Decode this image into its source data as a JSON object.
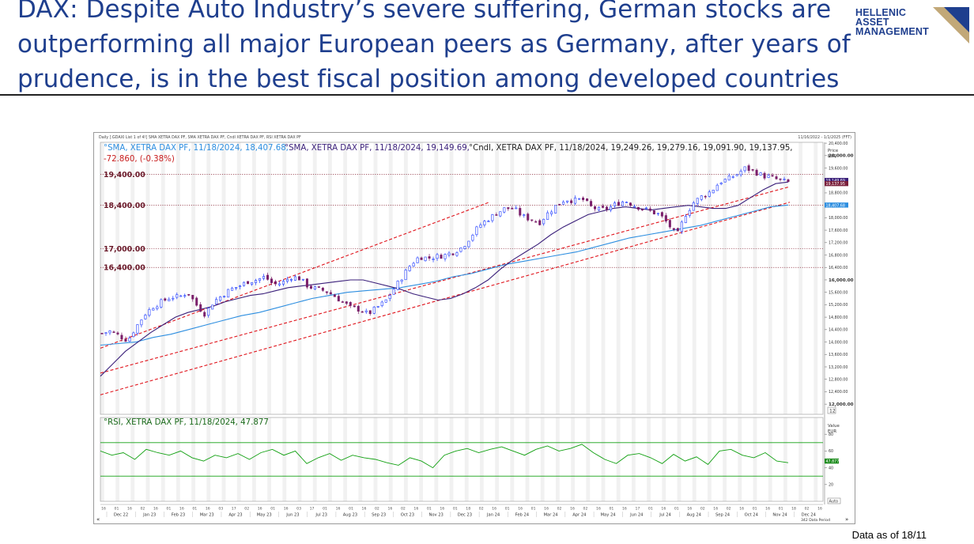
{
  "slide": {
    "title": "DAX: Despite Auto Industry’s severe suffering, German stocks are outperforming all major European peers as Germany, after years of prudence, is in the best fiscal position among developed countries",
    "footnote": "Data as of 18/11"
  },
  "logo": {
    "line1": "HELLENIC",
    "line2": "ASSET",
    "line3": "MANAGEMENT",
    "accent_color": "#c2a878",
    "text_color": "#1f3f8e"
  },
  "chart_data": {
    "type": "line",
    "title": "Daily [.GDAXI List 1 of 4!] SMA XETRA DAX PF, SMA XETRA DAX PF, Cndl XETRA DAX PF, RSI XETRA DAX PF",
    "date_range": "11/16/2022 - 1/1/2025 (FFT)",
    "legend": {
      "sma200": "SMA, XETRA DAX PF, 11/18/2024, 18,407.68,",
      "sma50": "SMA, XETRA DAX PF, 11/18/2024, 19,149.69,",
      "candle": "Cndl, XETRA DAX PF, 11/18/2024, 19,249.26, 19,279.16, 19,091.90, 19,137.95,",
      "change": "-72.860, (-0.38%)",
      "rsi": "RSI, XETRA DAX PF, 11/18/2024, 47.877"
    },
    "price_axis_label": "Price",
    "price_axis_unit": "EUR",
    "ylim": [
      11800,
      20300
    ],
    "y_ticks": [
      20400,
      20000,
      19600,
      19200,
      18800,
      18400,
      18000,
      17600,
      17200,
      16800,
      16400,
      16000,
      15600,
      15200,
      14800,
      14400,
      14000,
      13600,
      13200,
      12800,
      12400,
      12000
    ],
    "y_tick_labels": [
      "20,400.00",
      "20,000.00",
      "19,600.00",
      "19,200.00",
      "18,800.00",
      "18,400.00",
      "18,000.00",
      "17,600.00",
      "17,200.00",
      "16,800.00",
      "16,400.00",
      "16,000.00",
      "15,600.00",
      "15,200.00",
      "14,800.00",
      "14,400.00",
      "14,000.00",
      "13,600.00",
      "13,200.00",
      "12,800.00",
      "12,400.00",
      "12,000.00"
    ],
    "bold_ticks": [
      "20,000.00",
      "16,000.00",
      "12,000.00"
    ],
    "axis_box_label": "12",
    "price_labels": {
      "sma50": "19,149.69",
      "close": "19,137.95",
      "sma200": "18,407.68"
    },
    "levels": [
      {
        "value": 19400,
        "label": "19,400.00"
      },
      {
        "value": 18400,
        "label": "18,400.00"
      },
      {
        "value": 17000,
        "label": "17,000.00"
      },
      {
        "value": 16400,
        "label": "16,400.00"
      }
    ],
    "months": [
      "Dec 22",
      "Jan 23",
      "Feb 23",
      "Mar 23",
      "Apr 23",
      "May 23",
      "Jun 23",
      "Jul 23",
      "Aug 23",
      "Sep 23",
      "Oct 23",
      "Nov 23",
      "Dec 23",
      "Jan 24",
      "Feb 24",
      "Mar 24",
      "Apr 24",
      "May 24",
      "Jun 24",
      "Jul 24",
      "Aug 24",
      "Sep 24",
      "Oct 24",
      "Nov 24",
      "Dec 24"
    ],
    "day_ticks": [
      "16",
      "01",
      "16",
      "02",
      "16",
      "01",
      "16",
      "01",
      "16",
      "03",
      "17",
      "02",
      "16",
      "01",
      "16",
      "03",
      "17",
      "01",
      "16",
      "01",
      "16",
      "02",
      "16",
      "02",
      "16",
      "01",
      "16",
      "01",
      "18",
      "02",
      "16",
      "01",
      "16",
      "01",
      "16",
      "02",
      "16",
      "02",
      "16",
      "01",
      "16",
      "17",
      "01",
      "16",
      "01",
      "16",
      "02",
      "16",
      "02",
      "16",
      "01",
      "16",
      "01",
      "18",
      "02",
      "16"
    ],
    "close_series": [
      14280,
      14350,
      14200,
      14050,
      14500,
      14900,
      15150,
      15300,
      15450,
      15450,
      15600,
      15200,
      14900,
      15300,
      15500,
      15700,
      15800,
      15950,
      16000,
      16100,
      15850,
      15900,
      16100,
      16050,
      15800,
      15700,
      15650,
      15500,
      15300,
      15100,
      15050,
      14900,
      15100,
      15300,
      15700,
      16100,
      16500,
      16750,
      16700,
      16750,
      16800,
      16900,
      17050,
      17400,
      17750,
      17950,
      18150,
      18300,
      18300,
      18050,
      17950,
      17850,
      18150,
      18400,
      18600,
      18550,
      18600,
      18350,
      18250,
      18300,
      18450,
      18550,
      18400,
      18300,
      18200,
      18100,
      17800,
      17400,
      18100,
      18500,
      18700,
      18850,
      19150,
      19250,
      19400,
      19600,
      19500,
      19350,
      19300,
      19200,
      19138
    ],
    "sma50_series": [
      12900,
      13300,
      13700,
      14000,
      14300,
      14550,
      14800,
      14950,
      15050,
      15150,
      15300,
      15400,
      15500,
      15550,
      15650,
      15750,
      15800,
      15850,
      15900,
      15950,
      16000,
      16000,
      15900,
      15800,
      15700,
      15550,
      15450,
      15350,
      15400,
      15550,
      15750,
      16000,
      16350,
      16650,
      16900,
      17150,
      17450,
      17700,
      17900,
      18100,
      18200,
      18300,
      18350,
      18300,
      18250,
      18300,
      18350,
      18400,
      18350,
      18300,
      18300,
      18400,
      18650,
      18900,
      19100,
      19150
    ],
    "sma200_series": [
      13900,
      13950,
      14000,
      14150,
      14250,
      14400,
      14550,
      14700,
      14850,
      14950,
      15100,
      15250,
      15400,
      15500,
      15600,
      15650,
      15700,
      15750,
      15850,
      15950,
      16100,
      16200,
      16350,
      16500,
      16600,
      16700,
      16800,
      16900,
      17050,
      17200,
      17350,
      17450,
      17550,
      17650,
      17750,
      17900,
      18050,
      18200,
      18350,
      18408
    ],
    "rsi_series": [
      60,
      55,
      58,
      50,
      62,
      58,
      55,
      60,
      52,
      48,
      55,
      52,
      57,
      50,
      58,
      62,
      55,
      60,
      45,
      52,
      57,
      49,
      55,
      52,
      50,
      46,
      43,
      52,
      48,
      40,
      55,
      60,
      63,
      58,
      62,
      65,
      60,
      55,
      62,
      66,
      60,
      63,
      68,
      58,
      50,
      45,
      55,
      57,
      52,
      45,
      56,
      48,
      53,
      44,
      60,
      62,
      55,
      52,
      58,
      48,
      46
    ],
    "rsi_ylim": [
      0,
      100
    ],
    "rsi_ticks": [
      "80",
      "60",
      "40",
      "20"
    ],
    "rsi_label": "47.877",
    "rsi_axis_label": "Value",
    "rsi_axis_unit": "EUR",
    "rsi_bands": [
      70,
      30
    ],
    "auto_label": "Auto",
    "data_period_label": "342 Data Period",
    "nav_left": "«",
    "nav_right": "»"
  },
  "colors": {
    "title": "#1f3f8e",
    "sma50": "#3a1f7a",
    "sma200": "#2d8ee0",
    "up": "#1f3cff",
    "down": "#7a1f6a",
    "channel": "#e0141c",
    "level": "#8a2a3a",
    "rsi": "#11a011"
  }
}
